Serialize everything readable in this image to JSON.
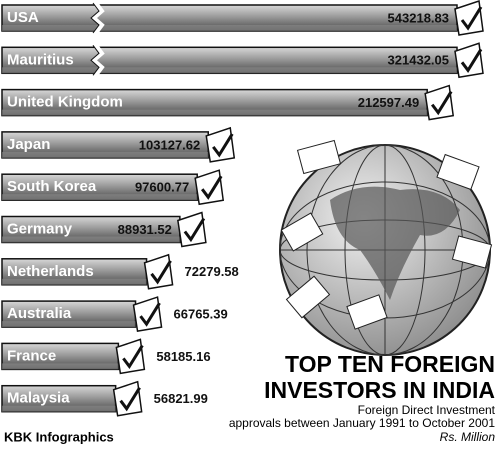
{
  "chart_data": {
    "type": "bar",
    "orientation": "horizontal",
    "title": [
      "TOP TEN FOREIGN",
      "INVESTORS IN INDIA"
    ],
    "subtitle": [
      "Foreign Direct Investment",
      "approvals between January 1991 to October 2001"
    ],
    "unit": "Rs. Million",
    "source": "KBK Infographics",
    "categories": [
      "USA",
      "Mauritius",
      "United Kingdom",
      "Japan",
      "South Korea",
      "Germany",
      "Netherlands",
      "Australia",
      "France",
      "Malaysia"
    ],
    "values": [
      543218.83,
      321432.05,
      212597.49,
      103127.62,
      97600.77,
      88931.52,
      72279.58,
      66765.39,
      58185.16,
      56821.99
    ],
    "color": "#8a8a8a"
  }
}
